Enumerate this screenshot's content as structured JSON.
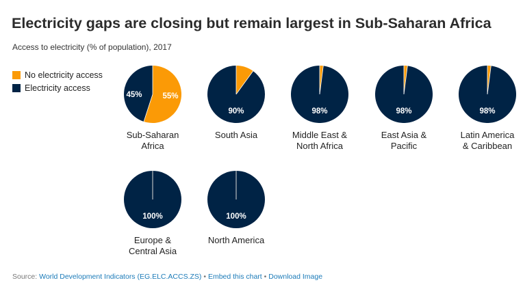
{
  "header": {
    "title": "Electricity gaps are closing but remain largest in Sub-Saharan Africa",
    "subtitle": "Access to electricity (% of population), 2017"
  },
  "legend": {
    "items": [
      {
        "label": "No electricity access",
        "color": "#fb9a06"
      },
      {
        "label": "Electricity access",
        "color": "#002345"
      }
    ]
  },
  "chart_data": {
    "type": "pie",
    "title": "Electricity gaps are closing but remain largest in Sub-Saharan Africa",
    "subtitle": "Access to electricity (% of population), 2017",
    "legend_position": "top-left",
    "series_colors": {
      "no_access": "#fb9a06",
      "access": "#002345"
    },
    "charts": [
      {
        "region": "Sub-Saharan Africa",
        "label_lines": [
          "Sub-Saharan",
          "Africa"
        ],
        "access": 45,
        "no_access": 55,
        "access_label": "45%",
        "no_access_label": "55%"
      },
      {
        "region": "South Asia",
        "label_lines": [
          "South Asia"
        ],
        "access": 90,
        "no_access": 10,
        "access_label": "90%"
      },
      {
        "region": "Middle East & North Africa",
        "label_lines": [
          "Middle East &",
          "North Africa"
        ],
        "access": 98,
        "no_access": 2,
        "access_label": "98%"
      },
      {
        "region": "East Asia & Pacific",
        "label_lines": [
          "East Asia &",
          "Pacific"
        ],
        "access": 98,
        "no_access": 2,
        "access_label": "98%"
      },
      {
        "region": "Latin America & Caribbean",
        "label_lines": [
          "Latin America",
          "& Caribbean"
        ],
        "access": 98,
        "no_access": 2,
        "access_label": "98%"
      },
      {
        "region": "Europe & Central Asia",
        "label_lines": [
          "Europe &",
          "Central Asia"
        ],
        "access": 100,
        "no_access": 0,
        "access_label": "100%"
      },
      {
        "region": "North America",
        "label_lines": [
          "North America"
        ],
        "access": 100,
        "no_access": 0,
        "access_label": "100%"
      }
    ]
  },
  "footer": {
    "source_prefix": "Source: ",
    "source_link": "World Development Indicators (EG.ELC.ACCS.ZS)",
    "separator_1": " • ",
    "embed_link": "Embed this chart",
    "separator_2": " • ",
    "download_link": "Download Image"
  }
}
